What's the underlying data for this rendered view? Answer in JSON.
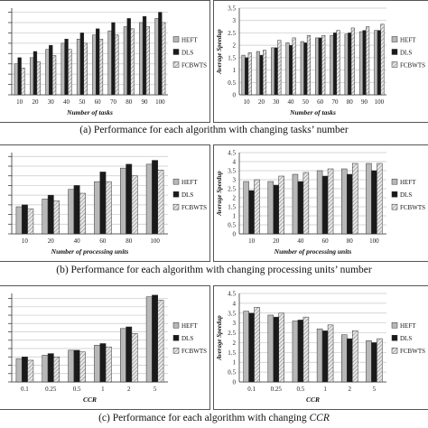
{
  "captions": [
    {
      "text": "(a) Performance for each algorithm with changing tasks’  number",
      "ital": ""
    },
    {
      "text": "(b) Performance for each algorithm with changing processing units’  number",
      "ital": ""
    },
    {
      "text": "(c) Performance for each algorithm with changing ",
      "ital": "CCR"
    }
  ],
  "colors": {
    "heft": "#b8b8b8",
    "dls": "#1a1a1a",
    "fcbwts": "#e6e6e6"
  },
  "legend_labels": [
    "HEFT",
    "DLS",
    "FCBWTS"
  ],
  "chart_data": [
    {
      "type": "bar",
      "xlabel": "Number of tasks",
      "ylabel": "",
      "categories": [
        "10",
        "20",
        "30",
        "40",
        "50",
        "60",
        "70",
        "80",
        "90",
        "100"
      ],
      "ylim": [
        0,
        4.2
      ],
      "yticks": [],
      "series": [
        {
          "name": "HEFT",
          "values": [
            1.5,
            1.8,
            2.2,
            2.5,
            2.7,
            2.9,
            3.1,
            3.3,
            3.5,
            3.7
          ]
        },
        {
          "name": "DLS",
          "values": [
            1.8,
            2.1,
            2.4,
            2.7,
            3.0,
            3.2,
            3.5,
            3.7,
            3.8,
            4.0
          ]
        },
        {
          "name": "FCBWTS",
          "values": [
            1.3,
            1.6,
            1.9,
            2.2,
            2.5,
            2.7,
            2.9,
            3.2,
            3.3,
            3.5
          ]
        }
      ]
    },
    {
      "type": "bar",
      "xlabel": "Number of tasks",
      "ylabel": "Average Speedup",
      "categories": [
        "10",
        "20",
        "30",
        "40",
        "50",
        "60",
        "70",
        "80",
        "90",
        "100"
      ],
      "ylim": [
        0,
        3.5
      ],
      "yticks": [
        "0",
        "0.5",
        "1",
        "1.5",
        "2",
        "2.5",
        "3",
        "3.5"
      ],
      "series": [
        {
          "name": "HEFT",
          "values": [
            1.6,
            1.75,
            1.9,
            2.1,
            2.15,
            2.3,
            2.4,
            2.45,
            2.55,
            2.6
          ]
        },
        {
          "name": "DLS",
          "values": [
            1.5,
            1.6,
            1.9,
            2.0,
            2.1,
            2.3,
            2.5,
            2.5,
            2.6,
            2.6
          ]
        },
        {
          "name": "FCBWTS",
          "values": [
            1.7,
            1.8,
            2.2,
            2.3,
            2.4,
            2.4,
            2.6,
            2.7,
            2.75,
            2.85
          ]
        }
      ]
    },
    {
      "type": "bar",
      "xlabel": "Number of processing units",
      "ylabel": "",
      "categories": [
        "10",
        "20",
        "40",
        "60",
        "80",
        "100"
      ],
      "ylim": [
        0,
        4.2
      ],
      "yticks": [],
      "series": [
        {
          "name": "HEFT",
          "values": [
            1.4,
            1.8,
            2.3,
            2.7,
            3.4,
            3.6
          ]
        },
        {
          "name": "DLS",
          "values": [
            1.5,
            2.0,
            2.5,
            3.2,
            3.6,
            3.8
          ]
        },
        {
          "name": "FCBWTS",
          "values": [
            1.3,
            1.7,
            2.1,
            2.7,
            3.0,
            3.3
          ]
        }
      ]
    },
    {
      "type": "bar",
      "xlabel": "Number of processing units",
      "ylabel": "Average Speedup",
      "categories": [
        "10",
        "20",
        "40",
        "60",
        "80",
        "100"
      ],
      "ylim": [
        0,
        4.5
      ],
      "yticks": [
        "0",
        "0.5",
        "1",
        "1.5",
        "2",
        "2.5",
        "3",
        "3.5",
        "4",
        "4.5"
      ],
      "series": [
        {
          "name": "HEFT",
          "values": [
            2.9,
            2.9,
            3.3,
            3.5,
            3.6,
            3.9
          ]
        },
        {
          "name": "DLS",
          "values": [
            2.4,
            2.7,
            2.9,
            3.2,
            3.3,
            3.5
          ]
        },
        {
          "name": "FCBWTS",
          "values": [
            3.0,
            3.2,
            3.4,
            3.6,
            3.9,
            3.9
          ]
        }
      ]
    },
    {
      "type": "bar",
      "xlabel": "CCR",
      "ylabel": "",
      "categories": [
        "0.1",
        "0.25",
        "0.5",
        "1",
        "2",
        "5"
      ],
      "ylim": [
        0,
        5.3
      ],
      "yticks": [],
      "series": [
        {
          "name": "HEFT",
          "values": [
            1.4,
            1.6,
            1.9,
            2.2,
            3.2,
            5.1
          ]
        },
        {
          "name": "DLS",
          "values": [
            1.5,
            1.7,
            1.9,
            2.3,
            3.3,
            5.2
          ]
        },
        {
          "name": "FCBWTS",
          "values": [
            1.3,
            1.5,
            1.8,
            2.1,
            2.9,
            4.9
          ]
        }
      ]
    },
    {
      "type": "bar",
      "xlabel": "CCR",
      "ylabel": "Average Speedup",
      "categories": [
        "0.1",
        "0.25",
        "0.5",
        "1",
        "2",
        "5"
      ],
      "ylim": [
        0,
        4.5
      ],
      "yticks": [
        "0",
        "0.5",
        "1",
        "1.5",
        "2",
        "2.5",
        "3",
        "3.5",
        "4",
        "4.5"
      ],
      "series": [
        {
          "name": "HEFT",
          "values": [
            3.6,
            3.4,
            3.1,
            2.7,
            2.4,
            2.1
          ]
        },
        {
          "name": "DLS",
          "values": [
            3.5,
            3.3,
            3.15,
            2.6,
            2.2,
            2.0
          ]
        },
        {
          "name": "FCBWTS",
          "values": [
            3.8,
            3.5,
            3.3,
            2.9,
            2.6,
            2.2
          ]
        }
      ]
    }
  ]
}
